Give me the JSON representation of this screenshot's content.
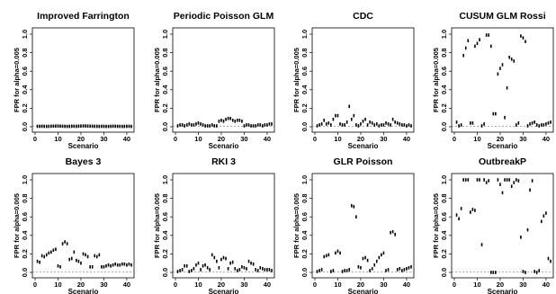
{
  "figure": {
    "xlabel": "Scenario",
    "ylabel": "FPR for alpha=0.005"
  },
  "chart_data": [
    {
      "type": "scatter",
      "title": "Improved Farrington",
      "xlabel": "Scenario",
      "ylabel": "FPR for alpha=0.005",
      "xlim": [
        0,
        42
      ],
      "ylim": [
        0,
        1
      ],
      "xticks": [
        "0",
        "10",
        "20",
        "30",
        "40"
      ],
      "yticks": [
        "0.0",
        "0.2",
        "0.4",
        "0.6",
        "0.8",
        "1.0"
      ],
      "reference_line": 0.005,
      "x": [
        1,
        2,
        3,
        4,
        5,
        6,
        7,
        8,
        9,
        10,
        11,
        12,
        13,
        14,
        15,
        16,
        17,
        18,
        19,
        20,
        21,
        22,
        23,
        24,
        25,
        26,
        27,
        28,
        29,
        30,
        31,
        32,
        33,
        34,
        35,
        36,
        37,
        38,
        39,
        40,
        41,
        42
      ],
      "y": [
        0.005,
        0.005,
        0.006,
        0.005,
        0.004,
        0.005,
        0.006,
        0.007,
        0.008,
        0.008,
        0.007,
        0.006,
        0.005,
        0.004,
        0.005,
        0.006,
        0.006,
        0.005,
        0.007,
        0.008,
        0.009,
        0.009,
        0.008,
        0.007,
        0.006,
        0.005,
        0.005,
        0.004,
        0.005,
        0.005,
        0.004,
        0.004,
        0.005,
        0.006,
        0.006,
        0.005,
        0.005,
        0.004,
        0.004,
        0.005,
        0.005,
        0.004
      ]
    },
    {
      "type": "scatter",
      "title": "Periodic Poisson GLM",
      "xlabel": "Scenario",
      "ylabel": "FPR for alpha=0.005",
      "xlim": [
        0,
        42
      ],
      "ylim": [
        0,
        1
      ],
      "xticks": [
        "0",
        "10",
        "20",
        "30",
        "40"
      ],
      "yticks": [
        "0.0",
        "0.2",
        "0.4",
        "0.6",
        "0.8",
        "1.0"
      ],
      "reference_line": 0.005,
      "x": [
        1,
        2,
        3,
        4,
        5,
        6,
        7,
        8,
        9,
        10,
        11,
        12,
        13,
        14,
        15,
        16,
        17,
        18,
        19,
        20,
        21,
        22,
        23,
        24,
        25,
        26,
        27,
        28,
        29,
        30,
        31,
        32,
        33,
        34,
        35,
        36,
        37,
        38,
        39,
        40,
        41,
        42
      ],
      "y": [
        0.01,
        0.02,
        0.02,
        0.01,
        0.02,
        0.03,
        0.02,
        0.02,
        0.03,
        0.04,
        0.03,
        0.02,
        0.01,
        0.01,
        0.01,
        0.02,
        0.01,
        0.01,
        0.06,
        0.07,
        0.06,
        0.08,
        0.09,
        0.09,
        0.07,
        0.06,
        0.07,
        0.07,
        0.06,
        0.01,
        0.02,
        0.02,
        0.01,
        0.01,
        0.01,
        0.02,
        0.02,
        0.01,
        0.02,
        0.02,
        0.03,
        0.03
      ]
    },
    {
      "type": "scatter",
      "title": "CDC",
      "xlabel": "Scenario",
      "ylabel": "FPR for alpha=0.005",
      "xlim": [
        0,
        42
      ],
      "ylim": [
        0,
        1
      ],
      "xticks": [
        "0",
        "10",
        "20",
        "30",
        "40"
      ],
      "yticks": [
        "0.0",
        "0.2",
        "0.4",
        "0.6",
        "0.8",
        "1.0"
      ],
      "reference_line": 0.005,
      "x": [
        1,
        2,
        3,
        4,
        5,
        6,
        7,
        8,
        9,
        10,
        11,
        12,
        13,
        14,
        15,
        16,
        17,
        18,
        19,
        20,
        21,
        22,
        23,
        24,
        25,
        26,
        27,
        28,
        29,
        30,
        31,
        32,
        33,
        34,
        35,
        36,
        37,
        38,
        39,
        40,
        41,
        42
      ],
      "y": [
        0.01,
        0.02,
        0.03,
        0.07,
        0.03,
        0.04,
        0.02,
        0.08,
        0.12,
        0.12,
        0.03,
        0.02,
        0.02,
        0.05,
        0.22,
        0.08,
        0.12,
        0.02,
        0.01,
        0.03,
        0.06,
        0.08,
        0.02,
        0.05,
        0.04,
        0.02,
        0.03,
        0.01,
        0.02,
        0.02,
        0.04,
        0.03,
        0.02,
        0.08,
        0.05,
        0.04,
        0.03,
        0.02,
        0.02,
        0.01,
        0.02,
        0.01
      ]
    },
    {
      "type": "scatter",
      "title": "CUSUM GLM Rossi",
      "xlabel": "Scenario",
      "ylabel": "FPR for alpha=0.005",
      "xlim": [
        0,
        42
      ],
      "ylim": [
        0,
        1
      ],
      "xticks": [
        "0",
        "10",
        "20",
        "30",
        "40"
      ],
      "yticks": [
        "0.0",
        "0.2",
        "0.4",
        "0.6",
        "0.8",
        "1.0"
      ],
      "reference_line": 0.005,
      "x": [
        1,
        2,
        3,
        4,
        5,
        6,
        7,
        8,
        9,
        10,
        11,
        12,
        13,
        14,
        15,
        16,
        17,
        18,
        19,
        20,
        21,
        22,
        23,
        24,
        25,
        26,
        27,
        28,
        29,
        30,
        31,
        32,
        33,
        34,
        35,
        36,
        37,
        38,
        39,
        40,
        41,
        42
      ],
      "y": [
        0.05,
        0.01,
        0.02,
        0.77,
        0.85,
        0.93,
        0.04,
        0.04,
        0.87,
        0.9,
        0.94,
        0.01,
        0.03,
        0.99,
        0.99,
        0.87,
        0.14,
        0.14,
        0.57,
        0.63,
        0.67,
        0.1,
        0.42,
        0.75,
        0.73,
        0.71,
        0.02,
        0.04,
        0.98,
        0.96,
        0.92,
        0.01,
        0.03,
        0.04,
        0.05,
        0.02,
        0.01,
        0.02,
        0.02,
        0.03,
        0.04,
        0.05
      ]
    },
    {
      "type": "scatter",
      "title": "Bayes 3",
      "xlabel": "Scenario",
      "ylabel": "FPR for alpha=0.005",
      "xlim": [
        0,
        42
      ],
      "ylim": [
        0,
        1
      ],
      "xticks": [
        "0",
        "10",
        "20",
        "30",
        "40"
      ],
      "yticks": [
        "0.0",
        "0.2",
        "0.4",
        "0.6",
        "0.8",
        "1.0"
      ],
      "reference_line": 0.005,
      "x": [
        1,
        2,
        3,
        4,
        5,
        6,
        7,
        8,
        9,
        10,
        11,
        12,
        13,
        14,
        15,
        16,
        17,
        18,
        19,
        20,
        21,
        22,
        23,
        24,
        25,
        26,
        27,
        28,
        29,
        30,
        31,
        32,
        33,
        34,
        35,
        36,
        37,
        38,
        39,
        40,
        41,
        42
      ],
      "y": [
        0.12,
        0.11,
        0.18,
        0.17,
        0.19,
        0.21,
        0.22,
        0.24,
        0.25,
        0.07,
        0.06,
        0.31,
        0.33,
        0.31,
        0.14,
        0.15,
        0.22,
        0.13,
        0.12,
        0.1,
        0.2,
        0.19,
        0.17,
        0.06,
        0.06,
        0.18,
        0.17,
        0.19,
        0.06,
        0.06,
        0.07,
        0.08,
        0.07,
        0.08,
        0.09,
        0.08,
        0.08,
        0.09,
        0.09,
        0.08,
        0.09,
        0.08
      ]
    },
    {
      "type": "scatter",
      "title": "RKI 3",
      "xlabel": "Scenario",
      "ylabel": "FPR for alpha=0.005",
      "xlim": [
        0,
        42
      ],
      "ylim": [
        0,
        1
      ],
      "xticks": [
        "0",
        "10",
        "20",
        "30",
        "40"
      ],
      "yticks": [
        "0.0",
        "0.2",
        "0.4",
        "0.6",
        "0.8",
        "1.0"
      ],
      "reference_line": 0.005,
      "x": [
        1,
        2,
        3,
        4,
        5,
        6,
        7,
        8,
        9,
        10,
        11,
        12,
        13,
        14,
        15,
        16,
        17,
        18,
        19,
        20,
        21,
        22,
        23,
        24,
        25,
        26,
        27,
        28,
        29,
        30,
        31,
        32,
        33,
        34,
        35,
        36,
        37,
        38,
        39,
        40,
        41,
        42
      ],
      "y": [
        0.01,
        0.02,
        0.03,
        0.07,
        0.07,
        0.01,
        0.02,
        0.04,
        0.08,
        0.1,
        0.03,
        0.07,
        0.08,
        0.05,
        0.03,
        0.19,
        0.16,
        0.12,
        0.05,
        0.14,
        0.16,
        0.15,
        0.04,
        0.1,
        0.11,
        0.04,
        0.02,
        0.03,
        0.06,
        0.05,
        0.04,
        0.12,
        0.1,
        0.09,
        0.03,
        0.02,
        0.05,
        0.04,
        0.03,
        0.03,
        0.03,
        0.02
      ]
    },
    {
      "type": "scatter",
      "title": "GLR Poisson",
      "xlabel": "Scenario",
      "ylabel": "FPR for alpha=0.005",
      "xlim": [
        0,
        42
      ],
      "ylim": [
        0,
        1
      ],
      "xticks": [
        "0",
        "10",
        "20",
        "30",
        "40"
      ],
      "yticks": [
        "0.0",
        "0.2",
        "0.4",
        "0.6",
        "0.8",
        "1.0"
      ],
      "reference_line": 0.005,
      "x": [
        1,
        2,
        3,
        4,
        5,
        6,
        7,
        8,
        9,
        10,
        11,
        12,
        13,
        14,
        15,
        16,
        17,
        18,
        19,
        20,
        21,
        22,
        23,
        24,
        25,
        26,
        27,
        28,
        29,
        30,
        31,
        32,
        33,
        34,
        35,
        36,
        37,
        38,
        39,
        40,
        41,
        42
      ],
      "y": [
        0.01,
        0.02,
        0.03,
        0.17,
        0.18,
        0.19,
        0.01,
        0.02,
        0.21,
        0.23,
        0.21,
        0.01,
        0.02,
        0.02,
        0.03,
        0.72,
        0.71,
        0.6,
        0.06,
        0.05,
        0.15,
        0.16,
        0.13,
        0.02,
        0.04,
        0.08,
        0.12,
        0.16,
        0.19,
        0.21,
        0.02,
        0.03,
        0.43,
        0.44,
        0.41,
        0.03,
        0.04,
        0.02,
        0.03,
        0.04,
        0.05,
        0.06
      ]
    },
    {
      "type": "scatter",
      "title": "OutbreakP",
      "xlabel": "Scenario",
      "ylabel": "FPR for alpha=0.005",
      "xlim": [
        0,
        42
      ],
      "ylim": [
        0,
        1
      ],
      "xticks": [
        "0",
        "10",
        "20",
        "30",
        "40"
      ],
      "yticks": [
        "0.0",
        "0.2",
        "0.4",
        "0.6",
        "0.8",
        "1.0"
      ],
      "reference_line": 0.005,
      "x": [
        1,
        2,
        3,
        4,
        5,
        6,
        7,
        8,
        9,
        10,
        11,
        12,
        13,
        14,
        15,
        16,
        17,
        18,
        19,
        20,
        21,
        22,
        23,
        24,
        25,
        26,
        27,
        28,
        29,
        30,
        31,
        32,
        33,
        34,
        35,
        36,
        37,
        38,
        39,
        40,
        41,
        42
      ],
      "y": [
        0.62,
        0.58,
        0.69,
        1.0,
        1.0,
        1.0,
        0.65,
        0.68,
        0.67,
        1.0,
        1.0,
        0.3,
        1.0,
        0.97,
        0.99,
        0.0,
        0.0,
        0.0,
        1.0,
        0.95,
        0.86,
        1.0,
        1.0,
        1.0,
        0.93,
        0.97,
        1.0,
        0.99,
        0.38,
        0.01,
        0.0,
        0.46,
        0.89,
        0.99,
        0.01,
        0.0,
        0.02,
        0.55,
        0.61,
        0.64,
        0.15,
        0.12
      ]
    }
  ]
}
